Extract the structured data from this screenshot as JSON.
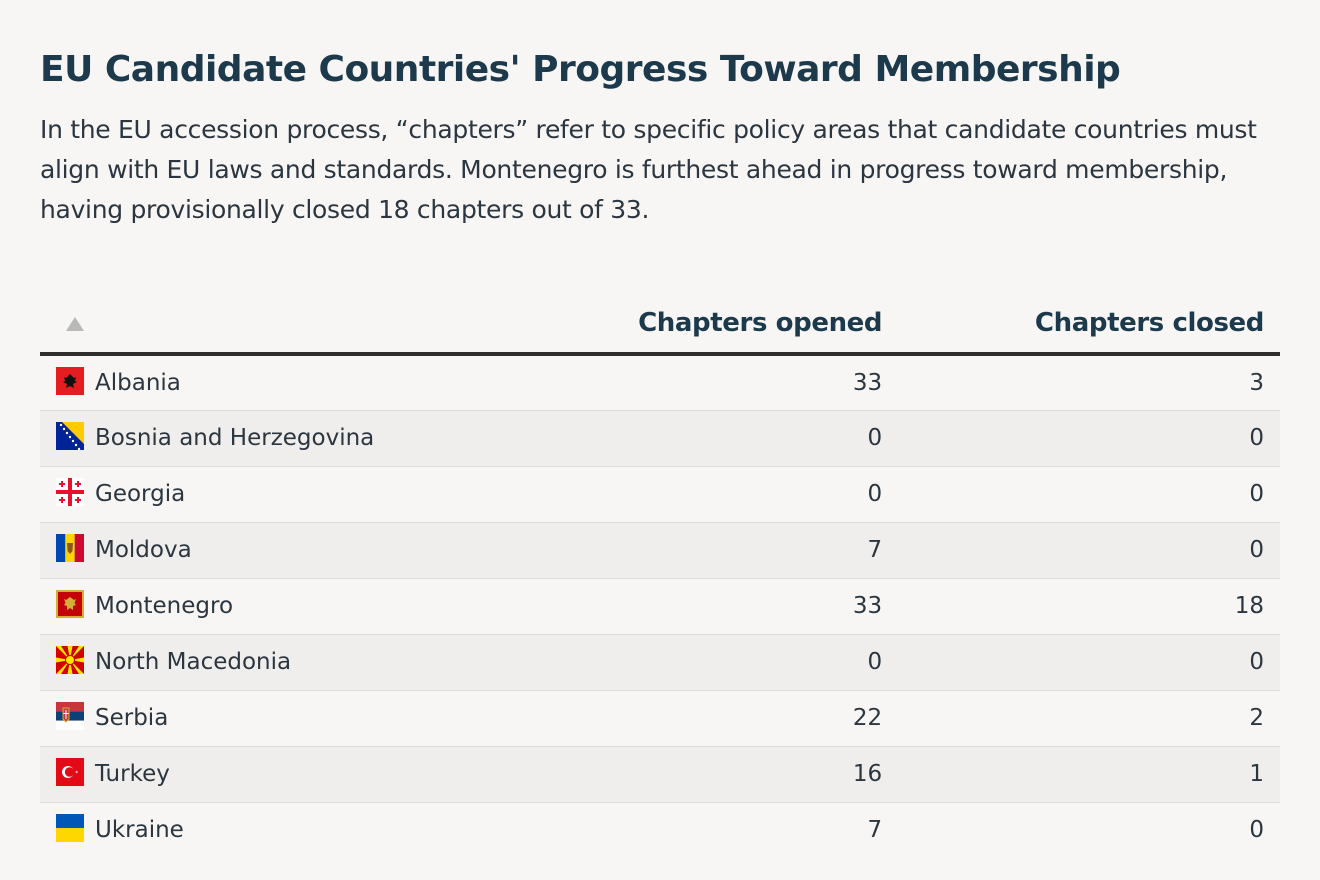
{
  "title": "EU Candidate Countries' Progress Toward Membership",
  "subtitle": "In the EU accession process, “chapters” refer to specific policy areas that candidate countries must align with EU laws and standards. Montenegro is furthest ahead in progress toward membership, having provisionally closed 18 chapters out of 33.",
  "table": {
    "columns": {
      "opened": "Chapters opened",
      "closed": "Chapters closed"
    },
    "sort_icon": "sort-ascending-icon",
    "rows": [
      {
        "country": "Albania",
        "flag": "albania-flag-icon",
        "opened": "33",
        "closed": "3"
      },
      {
        "country": "Bosnia and Herzegovina",
        "flag": "bosnia-flag-icon",
        "opened": "0",
        "closed": "0"
      },
      {
        "country": "Georgia",
        "flag": "georgia-flag-icon",
        "opened": "0",
        "closed": "0"
      },
      {
        "country": "Moldova",
        "flag": "moldova-flag-icon",
        "opened": "7",
        "closed": "0"
      },
      {
        "country": "Montenegro",
        "flag": "montenegro-flag-icon",
        "opened": "33",
        "closed": "18"
      },
      {
        "country": "North Macedonia",
        "flag": "north-macedonia-flag-icon",
        "opened": "0",
        "closed": "0"
      },
      {
        "country": "Serbia",
        "flag": "serbia-flag-icon",
        "opened": "22",
        "closed": "2"
      },
      {
        "country": "Turkey",
        "flag": "turkey-flag-icon",
        "opened": "16",
        "closed": "1"
      },
      {
        "country": "Ukraine",
        "flag": "ukraine-flag-icon",
        "opened": "7",
        "closed": "0"
      }
    ]
  }
}
